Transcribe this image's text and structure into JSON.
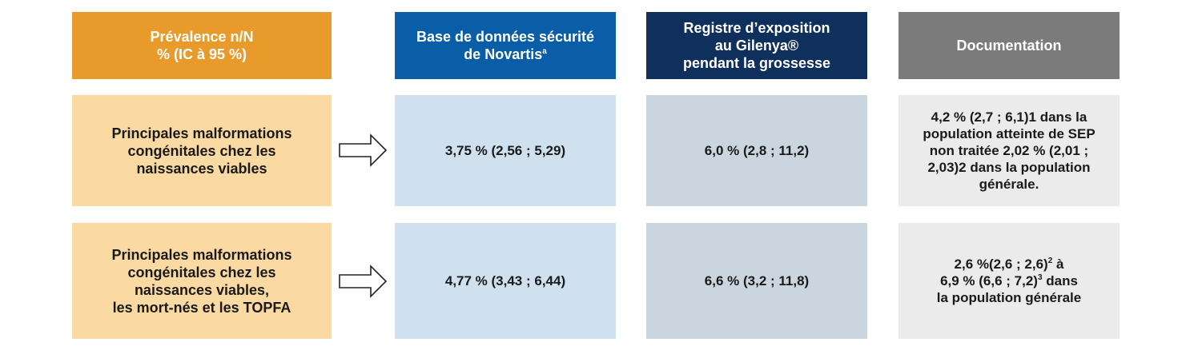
{
  "header": {
    "prevalence": [
      "Prévalence n/N",
      "% (IC à 95 %)"
    ],
    "novartis": [
      "Base de données sécurité",
      "de Novartis"
    ],
    "novartis_sup": "a",
    "registry": [
      "Registre d’exposition",
      "au Gilenya®",
      "pendant la grossesse"
    ],
    "documentation": "Documentation"
  },
  "rows": [
    {
      "label": [
        "Principales malformations",
        "congénitales chez les",
        "naissances viables"
      ],
      "novartis": "3,75 % (2,56 ; 5,29)",
      "registry": "6,0 % (2,8 ; 11,2)",
      "documentation": [
        "4,2 % (2,7 ; 6,1)1 dans la",
        "population atteinte de SEP",
        "non traitée 2,02 % (2,01 ;",
        "2,03)2 dans la population",
        "générale."
      ]
    },
    {
      "label": [
        "Principales malformations",
        "congénitales chez les",
        "naissances viables,",
        "les mort-nés et les TOPFA"
      ],
      "novartis": "4,77 % (3,43 ; 6,44)",
      "registry": "6,6 % (3,2 ; 11,8)",
      "doc_line1": "2,6 %(2,6 ; 2,6)",
      "doc_line1_sup": "2",
      "doc_line1_end": " à",
      "doc_line2": "6,9 % (6,6 ; 7,2)",
      "doc_line2_sup": "3",
      "doc_line2_end": " dans",
      "doc_line3": "la population générale"
    }
  ],
  "colors": {
    "prevalence_header": "#e89a2a",
    "novartis_header": "#0a5ea8",
    "registry_header": "#0f2f5c",
    "documentation_header": "#7b7b7b"
  }
}
